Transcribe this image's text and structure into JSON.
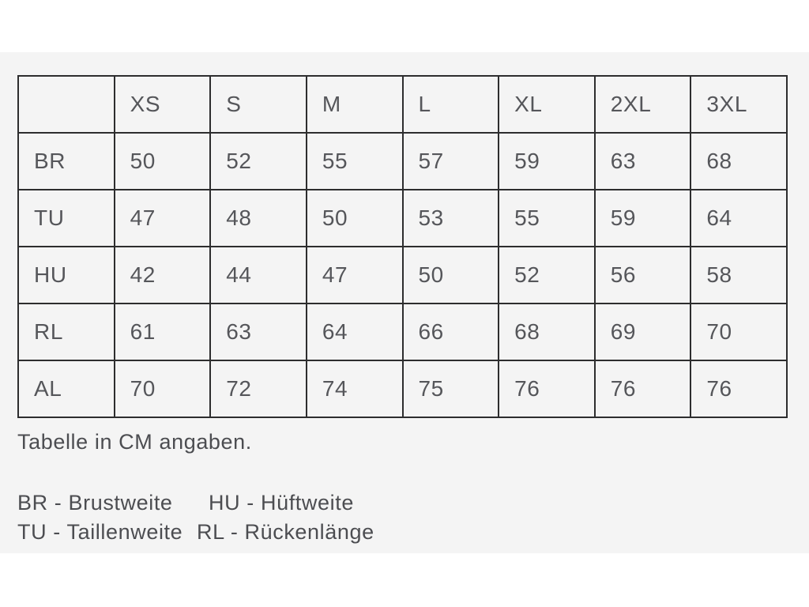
{
  "page": {
    "background": "#ffffff",
    "panel_background": "#f4f4f4",
    "table_border_color": "#2d2d2e",
    "text_color": "#55565a"
  },
  "size_table": {
    "column_headers": [
      "",
      "XS",
      "S",
      "M",
      "L",
      "XL",
      "2XL",
      "3XL"
    ],
    "rows": [
      {
        "label": "BR",
        "values": [
          50,
          52,
          55,
          57,
          59,
          63,
          68
        ]
      },
      {
        "label": "TU",
        "values": [
          47,
          48,
          50,
          53,
          55,
          59,
          64
        ]
      },
      {
        "label": "HU",
        "values": [
          42,
          44,
          47,
          50,
          52,
          56,
          58
        ]
      },
      {
        "label": "RL",
        "values": [
          61,
          63,
          64,
          66,
          68,
          69,
          70
        ]
      },
      {
        "label": "AL",
        "values": [
          70,
          72,
          74,
          75,
          76,
          76,
          76
        ]
      }
    ]
  },
  "note": "Tabelle in CM angaben.",
  "legend": {
    "lines": [
      [
        "BR - Brustweite",
        "HU - Hüftweite"
      ],
      [
        "TU - Taillenweite",
        "RL - Rückenlänge"
      ]
    ]
  },
  "chart_data": {
    "type": "table",
    "title": "Tabelle in CM angaben.",
    "columns": [
      "XS",
      "S",
      "M",
      "L",
      "XL",
      "2XL",
      "3XL"
    ],
    "row_labels": [
      "BR",
      "TU",
      "HU",
      "RL",
      "AL"
    ],
    "values": [
      [
        50,
        52,
        55,
        57,
        59,
        63,
        68
      ],
      [
        47,
        48,
        50,
        53,
        55,
        59,
        64
      ],
      [
        42,
        44,
        47,
        50,
        52,
        56,
        58
      ],
      [
        61,
        63,
        64,
        66,
        68,
        69,
        70
      ],
      [
        70,
        72,
        74,
        75,
        76,
        76,
        76
      ]
    ],
    "units": "cm",
    "legend": {
      "BR": "Brustweite",
      "TU": "Taillenweite",
      "HU": "Hüftweite",
      "RL": "Rückenlänge"
    }
  }
}
